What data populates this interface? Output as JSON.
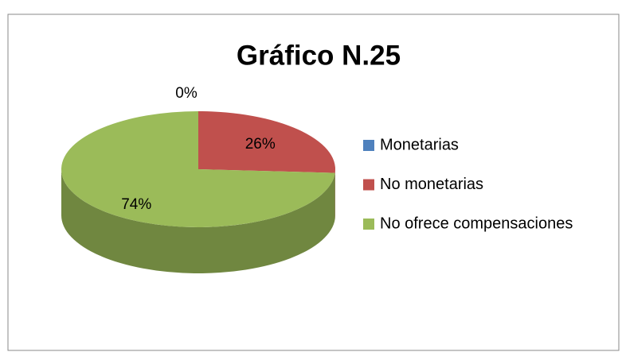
{
  "chart_data": {
    "type": "pie",
    "title": "Gráfico N.25",
    "categories": [
      "Monetarias",
      "No monetarias",
      "No ofrece compensaciones"
    ],
    "values": [
      0,
      26,
      74
    ],
    "value_labels": [
      "0%",
      "26%",
      "74%"
    ],
    "colors": [
      "#4f81bd",
      "#c0504d",
      "#9bbb59"
    ],
    "legend": "right"
  }
}
